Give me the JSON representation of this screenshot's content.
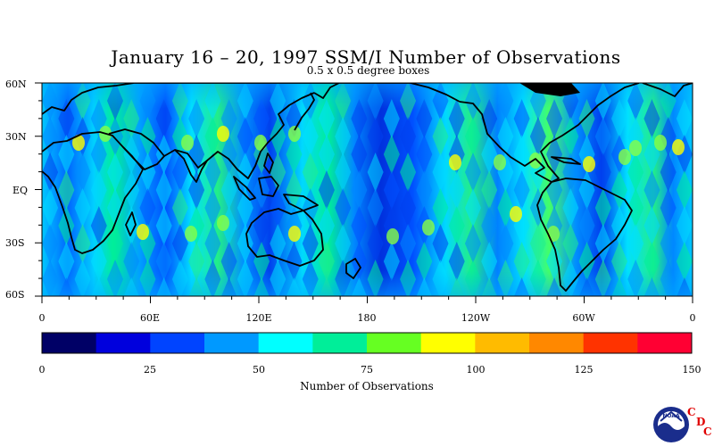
{
  "title": "January 16 – 20, 1997 SSM/I Number of Observations",
  "subtitle": "0.5 x 0.5 degree boxes",
  "map": {
    "lat_labels": [
      "60N",
      "30N",
      "EQ",
      "30S",
      "60S"
    ],
    "lon_labels": [
      "0",
      "60E",
      "120E",
      "180",
      "120W",
      "60W",
      "0"
    ],
    "lat_range": [
      -60,
      60
    ],
    "lon_range": [
      0,
      360
    ]
  },
  "colorbar": {
    "title": "Number of Observations",
    "tick_labels": [
      "0",
      "25",
      "50",
      "75",
      "100",
      "125",
      "150"
    ],
    "range": [
      0,
      150
    ],
    "colors": [
      "#000066",
      "#0000dd",
      "#0044ff",
      "#0099ff",
      "#00ffff",
      "#00ee99",
      "#66ff22",
      "#ffff00",
      "#ffbb00",
      "#ff8800",
      "#ff3300",
      "#ff0033"
    ]
  },
  "logo": {
    "name": "noaa-logo",
    "text": "NOAA",
    "letters": [
      "C",
      "D",
      "C"
    ]
  }
}
